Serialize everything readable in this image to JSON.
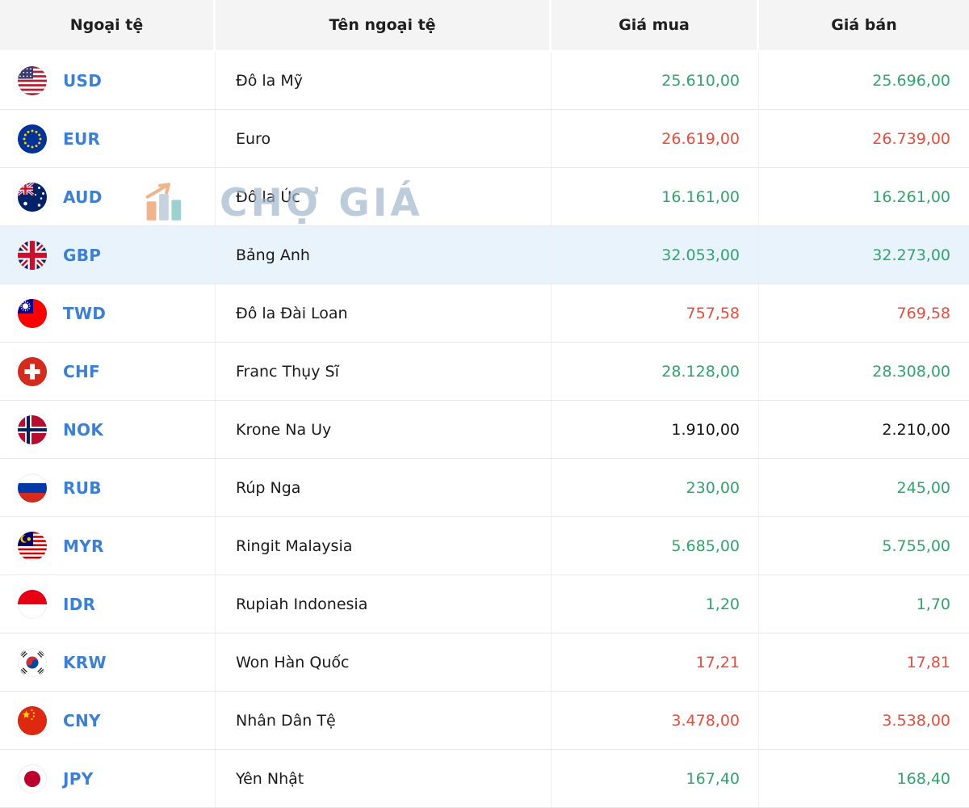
{
  "table": {
    "columns": [
      "Ngoại tệ",
      "Tên ngoại tệ",
      "Giá mua",
      "Giá bán"
    ]
  },
  "watermark": {
    "text": "CHỢ GIÁ"
  },
  "colors": {
    "currency_code": "#3d7fd0",
    "price_up": "#30a46c",
    "price_down": "#e74c3c",
    "price_neutral": "#141414",
    "row_highlight": "#e9f3fc",
    "header_bg": "#f4f4f4"
  },
  "rows": [
    {
      "code": "USD",
      "flag": "usd-flag-icon",
      "name": "Đô la Mỹ",
      "buy": "25.610,00",
      "sell": "25.696,00",
      "buy_trend": "up",
      "sell_trend": "up",
      "highlighted": false
    },
    {
      "code": "EUR",
      "flag": "eur-flag-icon",
      "name": "Euro",
      "buy": "26.619,00",
      "sell": "26.739,00",
      "buy_trend": "down",
      "sell_trend": "down",
      "highlighted": false
    },
    {
      "code": "AUD",
      "flag": "aud-flag-icon",
      "name": "Đô la Úc",
      "buy": "16.161,00",
      "sell": "16.261,00",
      "buy_trend": "up",
      "sell_trend": "up",
      "highlighted": false
    },
    {
      "code": "GBP",
      "flag": "gbp-flag-icon",
      "name": "Bảng Anh",
      "buy": "32.053,00",
      "sell": "32.273,00",
      "buy_trend": "up",
      "sell_trend": "up",
      "highlighted": true
    },
    {
      "code": "TWD",
      "flag": "twd-flag-icon",
      "name": "Đô la Đài Loan",
      "buy": "757,58",
      "sell": "769,58",
      "buy_trend": "down",
      "sell_trend": "down",
      "highlighted": false
    },
    {
      "code": "CHF",
      "flag": "chf-flag-icon",
      "name": "Franc Thụy Sĩ",
      "buy": "28.128,00",
      "sell": "28.308,00",
      "buy_trend": "up",
      "sell_trend": "up",
      "highlighted": false
    },
    {
      "code": "NOK",
      "flag": "nok-flag-icon",
      "name": "Krone Na Uy",
      "buy": "1.910,00",
      "sell": "2.210,00",
      "buy_trend": "neutral",
      "sell_trend": "neutral",
      "highlighted": false
    },
    {
      "code": "RUB",
      "flag": "rub-flag-icon",
      "name": "Rúp Nga",
      "buy": "230,00",
      "sell": "245,00",
      "buy_trend": "up",
      "sell_trend": "up",
      "highlighted": false
    },
    {
      "code": "MYR",
      "flag": "myr-flag-icon",
      "name": "Ringit Malaysia",
      "buy": "5.685,00",
      "sell": "5.755,00",
      "buy_trend": "up",
      "sell_trend": "up",
      "highlighted": false
    },
    {
      "code": "IDR",
      "flag": "idr-flag-icon",
      "name": "Rupiah Indonesia",
      "buy": "1,20",
      "sell": "1,70",
      "buy_trend": "up",
      "sell_trend": "up",
      "highlighted": false
    },
    {
      "code": "KRW",
      "flag": "krw-flag-icon",
      "name": "Won Hàn Quốc",
      "buy": "17,21",
      "sell": "17,81",
      "buy_trend": "down",
      "sell_trend": "down",
      "highlighted": false
    },
    {
      "code": "CNY",
      "flag": "cny-flag-icon",
      "name": "Nhân Dân Tệ",
      "buy": "3.478,00",
      "sell": "3.538,00",
      "buy_trend": "down",
      "sell_trend": "down",
      "highlighted": false
    },
    {
      "code": "JPY",
      "flag": "jpy-flag-icon",
      "name": "Yên Nhật",
      "buy": "167,40",
      "sell": "168,40",
      "buy_trend": "up",
      "sell_trend": "up",
      "highlighted": false
    }
  ]
}
